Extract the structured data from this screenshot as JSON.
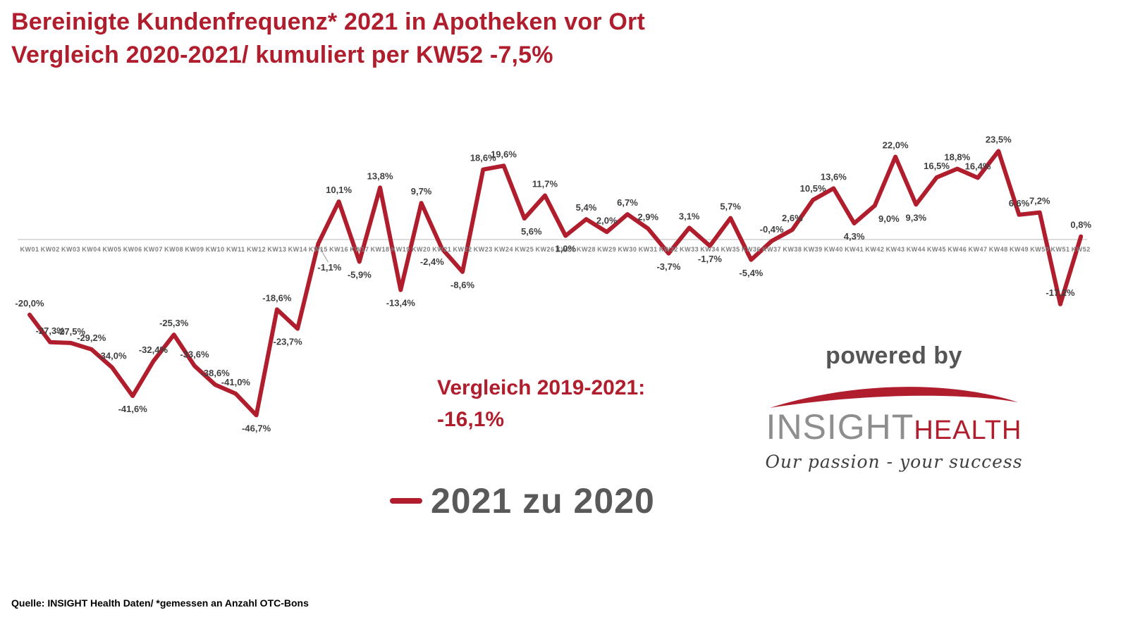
{
  "chart_data": {
    "type": "line",
    "title": "Bereinigte Kundenfrequenz* 2021 in Apotheken vor Ort",
    "subtitle": "Vergleich 2020-2021/ kumuliert per KW52 -7,5%",
    "categories": [
      "KW01",
      "KW02",
      "KW03",
      "KW04",
      "KW05",
      "KW06",
      "KW07",
      "KW08",
      "KW09",
      "KW10",
      "KW11",
      "KW12",
      "KW13",
      "KW14",
      "KW15",
      "KW16",
      "KW17",
      "KW18",
      "KW19",
      "KW20",
      "KW21",
      "KW22",
      "KW23",
      "KW24",
      "KW25",
      "KW26",
      "KW27",
      "KW28",
      "KW29",
      "KW30",
      "KW31",
      "KW32",
      "KW33",
      "KW34",
      "KW35",
      "KW36",
      "KW37",
      "KW38",
      "KW39",
      "KW40",
      "KW41",
      "KW42",
      "KW43",
      "KW44",
      "KW45",
      "KW46",
      "KW47",
      "KW48",
      "KW49",
      "KW50",
      "KW51",
      "KW52"
    ],
    "series": [
      {
        "name": "2021 zu 2020",
        "color": "#B01E2E",
        "values": [
          -20.0,
          -27.3,
          -27.5,
          -29.2,
          -34.0,
          -41.6,
          -32.4,
          -25.3,
          -33.6,
          -38.6,
          -41.0,
          -46.7,
          -18.6,
          -23.7,
          -1.1,
          10.1,
          -5.9,
          13.8,
          -13.4,
          9.7,
          -2.4,
          -8.6,
          18.6,
          19.6,
          5.6,
          11.7,
          1.0,
          5.4,
          2.0,
          6.7,
          2.9,
          -3.7,
          3.1,
          -1.7,
          5.7,
          -5.4,
          -0.4,
          2.6,
          10.5,
          13.6,
          4.3,
          9.0,
          22.0,
          9.3,
          16.5,
          18.8,
          16.4,
          23.5,
          6.6,
          7.2,
          -17.2,
          0.8
        ]
      }
    ],
    "point_labels": [
      "-20,0%",
      "-27,3%",
      "-27,5%",
      "-29,2%",
      "-34,0%",
      "-41,6%",
      "-32,4%",
      "-25,3%",
      "-33,6%",
      "-38,6%",
      "-41,0%",
      "-46,7%",
      "-18,6%",
      "-23,7%",
      "-1,1%",
      "10,1%",
      "-5,9%",
      "13,8%",
      "-13,4%",
      "9,7%",
      "-2,4%",
      "-8,6%",
      "18,6%",
      "19,6%",
      "5,6%",
      "11,7%",
      "1,0%",
      "5,4%",
      "2,0%",
      "6,7%",
      "2,9%",
      "-3,7%",
      "3,1%",
      "-1,7%",
      "5,7%",
      "-5,4%",
      "-0,4%",
      "2,6%",
      "10,5%",
      "13,6%",
      "4,3%",
      "9,0%",
      "22,0%",
      "9,3%",
      "16,5%",
      "18,8%",
      "16,4%",
      "23,5%",
      "6,6%",
      "7,2%",
      "-17,2%",
      "0,8%"
    ],
    "label_side": [
      "a",
      "a",
      "a",
      "a",
      "a",
      "b",
      "a",
      "a",
      "a",
      "a",
      "a",
      "b",
      "a",
      "b",
      "b",
      "a",
      "b",
      "a",
      "b",
      "a",
      "b",
      "b",
      "a",
      "a",
      "b",
      "a",
      "b",
      "a",
      "a",
      "a",
      "a",
      "b",
      "a",
      "b",
      "a",
      "b",
      "a",
      "a",
      "a",
      "a",
      "b",
      "b",
      "a",
      "b",
      "a",
      "a",
      "a",
      "a",
      "a",
      "a",
      "a",
      "a"
    ],
    "callout_week": "KW15",
    "unit": "percent",
    "ylim": [
      -50,
      26
    ],
    "grid": "zero-axis-only",
    "legend_position": "bottom-center",
    "annotation": {
      "line1": "Vergleich 2019-2021:",
      "line2": "-16,1%"
    }
  },
  "logo": {
    "powered_by": "powered by",
    "brand_1": "INSIGHT",
    "brand_2": "HEALTH",
    "tagline": "Our passion - your success"
  },
  "source": "Quelle: INSIGHT Health Daten/ *gemessen an Anzahl OTC-Bons",
  "colors": {
    "accent_red": "#B01E2E",
    "data_label_gray": "#3F3F3F",
    "axis_label_gray": "#7F7F7F",
    "axis_line_gray": "#C6C6C6",
    "legend_text_gray": "#595959",
    "brand_gray": "#8E8E8E"
  }
}
